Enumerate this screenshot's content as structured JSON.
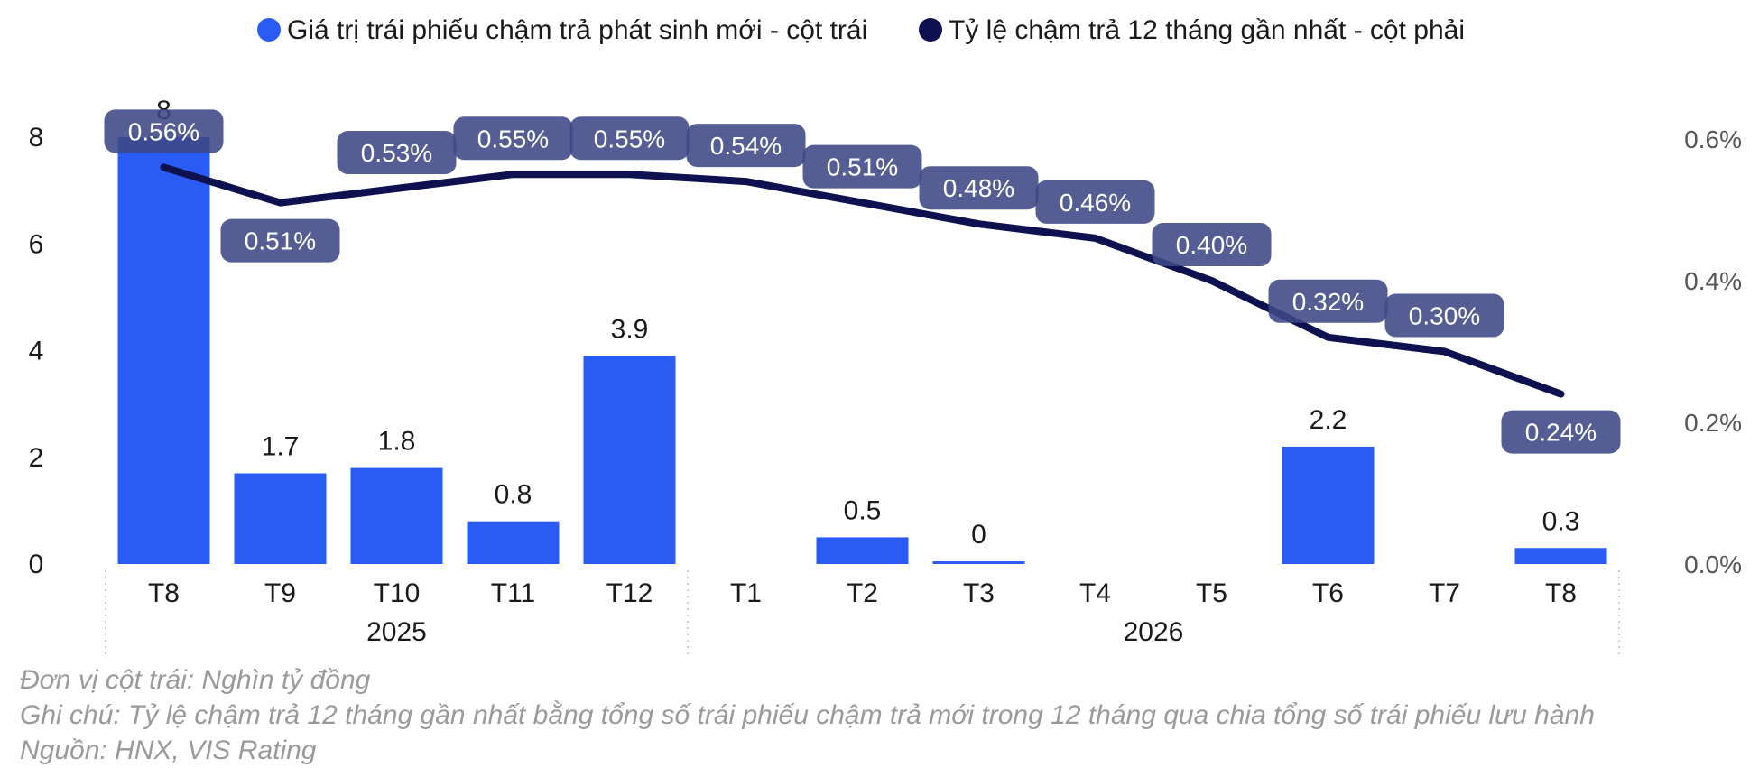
{
  "chart_data": {
    "type": "bar+line",
    "legend": [
      {
        "label": "Giá trị trái phiếu chậm trả phát sinh mới - cột trái",
        "color": "#2a5cf5",
        "marker": "circle"
      },
      {
        "label": "Tỷ lệ chậm trả 12 tháng gần nhất - cột phải",
        "color": "#0d1150",
        "marker": "circle"
      }
    ],
    "legend_position": "top-center",
    "categories": [
      "T8",
      "T9",
      "T10",
      "T11",
      "T12",
      "T1",
      "T2",
      "T3",
      "T4",
      "T5",
      "T6",
      "T7",
      "T8"
    ],
    "groups": [
      {
        "label": "2025",
        "from": 0,
        "to": 4
      },
      {
        "label": "2026",
        "from": 5,
        "to": 12
      }
    ],
    "bars": {
      "name": "Giá trị trái phiếu chậm trả phát sinh mới - cột trái",
      "values": [
        8,
        1.7,
        1.8,
        0.8,
        3.9,
        null,
        0.5,
        0,
        null,
        null,
        2.2,
        null,
        0.3
      ],
      "labels": [
        "8",
        "1.7",
        "1.8",
        "0.8",
        "3.9",
        "",
        "0.5",
        "0",
        "",
        "",
        "2.2",
        "",
        "0.3"
      ],
      "color": "#2a5cf5"
    },
    "line": {
      "name": "Tỷ lệ chậm trả 12 tháng gần nhất - cột phải",
      "values": [
        0.56,
        0.51,
        0.53,
        0.55,
        0.55,
        0.54,
        0.51,
        0.48,
        0.46,
        0.4,
        0.32,
        0.3,
        0.24
      ],
      "labels": [
        "0.56%",
        "0.51%",
        "0.53%",
        "0.55%",
        "0.55%",
        "0.54%",
        "0.51%",
        "0.48%",
        "0.46%",
        "0.40%",
        "0.32%",
        "0.30%",
        "0.24%"
      ],
      "label_positions": [
        "above",
        "below",
        "above",
        "above",
        "above",
        "above",
        "above",
        "above",
        "above",
        "above",
        "above",
        "above",
        "below"
      ],
      "color": "#0d1150",
      "label_bg": "#3d4885"
    },
    "y_left": {
      "min": 0,
      "max": 8,
      "ticks": [
        "0",
        "2",
        "4",
        "6",
        "8"
      ]
    },
    "y_right": {
      "min": 0,
      "max": 0.6,
      "ticks": [
        "0.0%",
        "0.2%",
        "0.4%",
        "0.6%"
      ]
    },
    "grid": false
  },
  "notes": [
    "Đơn vị cột trái: Nghìn tỷ đồng",
    "Ghi chú: Tỷ lệ chậm trả 12 tháng gần nhất bằng tổng số trái phiếu chậm trả mới trong 12 tháng qua chia tổng số trái phiếu lưu hành",
    "Nguồn: HNX, VIS Rating"
  ]
}
